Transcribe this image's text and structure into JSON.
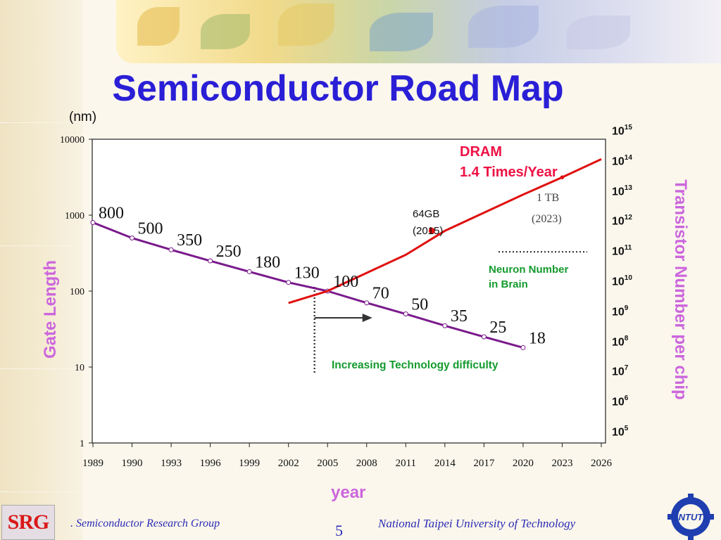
{
  "slide": {
    "title": "Semiconductor Road Map",
    "page_number": "5",
    "footer_left": ". Semiconductor Research Group",
    "footer_right": "National Taipei University of  Technology",
    "logo_left_text": "SRG",
    "logo_right_text": "NTUT"
  },
  "chart_data": {
    "type": "line",
    "x": [
      1989,
      1990,
      1993,
      1996,
      1999,
      2002,
      2005,
      2008,
      2011,
      2014,
      2017,
      2020,
      2023,
      2026
    ],
    "x_tick_labels": [
      "1989",
      "1990",
      "1993",
      "1996",
      "1999",
      "2002",
      "2005",
      "2008",
      "2011",
      "2014",
      "2017",
      "2020",
      "2023",
      "2026"
    ],
    "xlabel": "year",
    "ylabel_left": "Gate Length",
    "ylabel_left_unit": "(nm)",
    "ylabel_right": "Transistor Number per chip",
    "y_left_scale": "log",
    "y_left_ticks": [
      "10000",
      "1000",
      "100",
      "10",
      "1"
    ],
    "y_right_scale": "log",
    "y_right_ticks": [
      {
        "base": "10",
        "exp": "15"
      },
      {
        "base": "10",
        "exp": "14"
      },
      {
        "base": "10",
        "exp": "13"
      },
      {
        "base": "10",
        "exp": "12"
      },
      {
        "base": "10",
        "exp": "11"
      },
      {
        "base": "10",
        "exp": "10"
      },
      {
        "base": "10",
        "exp": "9"
      },
      {
        "base": "10",
        "exp": "8"
      },
      {
        "base": "10",
        "exp": "7"
      },
      {
        "base": "10",
        "exp": "6"
      },
      {
        "base": "10",
        "exp": "5"
      }
    ],
    "grid": false,
    "series": [
      {
        "name": "Gate Length",
        "axis": "left",
        "color": "#7a1a8c",
        "points": [
          {
            "x": 1989,
            "y": 800,
            "label": "800"
          },
          {
            "x": 1990,
            "y": 500,
            "label": "500"
          },
          {
            "x": 1993,
            "y": 350,
            "label": "350"
          },
          {
            "x": 1996,
            "y": 250,
            "label": "250"
          },
          {
            "x": 1999,
            "y": 180,
            "label": "180"
          },
          {
            "x": 2002,
            "y": 130,
            "label": "130"
          },
          {
            "x": 2005,
            "y": 100,
            "label": "100"
          },
          {
            "x": 2008,
            "y": 70,
            "label": "70"
          },
          {
            "x": 2011,
            "y": 50,
            "label": "50"
          },
          {
            "x": 2014,
            "y": 35,
            "label": "35"
          },
          {
            "x": 2017,
            "y": 25,
            "label": "25"
          },
          {
            "x": 2020,
            "y": 18,
            "label": "18"
          }
        ]
      },
      {
        "name": "DRAM",
        "axis": "right",
        "color": "#e01010",
        "points": [
          {
            "x": 2002,
            "y": 2000000000.0
          },
          {
            "x": 2005,
            "y": 5000000000.0
          },
          {
            "x": 2008,
            "y": 20000000000.0
          },
          {
            "x": 2011,
            "y": 80000000000.0
          },
          {
            "x": 2014,
            "y": 500000000000.0
          },
          {
            "x": 2017,
            "y": 2000000000000.0
          },
          {
            "x": 2020,
            "y": 8000000000000.0
          },
          {
            "x": 2023,
            "y": 30000000000000.0
          },
          {
            "x": 2026,
            "y": 120000000000000.0
          }
        ],
        "markers": [
          {
            "x": 2013,
            "y": 500000000000.0
          },
          {
            "x": 2023,
            "y": 30000000000000.0
          }
        ]
      }
    ],
    "annotations": {
      "dram_line1": "DRAM",
      "dram_line2": "1.4 Times/Year",
      "tb_line1": "1 TB",
      "tb_line2": "(2023)",
      "gb_line1": "64GB",
      "gb_line2": "(2015)",
      "neuron_line1": "Neuron Number",
      "neuron_line2": "in Brain",
      "neuron_level": 100000000000.0,
      "difficulty": "Increasing Technology difficulty",
      "difficulty_start_year": 2004
    }
  }
}
